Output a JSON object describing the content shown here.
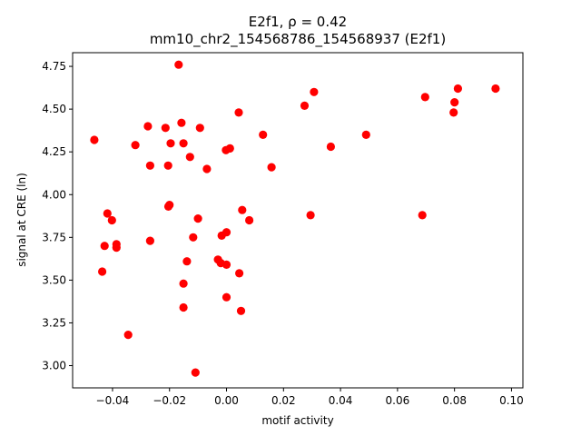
{
  "chart_data": {
    "type": "scatter",
    "title_line1": "E2f1, ρ = 0.42",
    "title_line2": "mm10_chr2_154568786_154568937 (E2f1)",
    "xlabel": "motif activity",
    "ylabel": "signal at CRE (ln)",
    "xlim": [
      -0.054,
      0.104
    ],
    "ylim": [
      2.87,
      4.83
    ],
    "xticks": [
      -0.04,
      -0.02,
      0.0,
      0.02,
      0.04,
      0.06,
      0.08,
      0.1
    ],
    "xtick_labels": [
      "−0.04",
      "−0.02",
      "0.00",
      "0.02",
      "0.04",
      "0.06",
      "0.08",
      "0.10"
    ],
    "yticks": [
      3.0,
      3.25,
      3.5,
      3.75,
      4.0,
      4.25,
      4.5,
      4.75
    ],
    "ytick_labels": [
      "3.00",
      "3.25",
      "3.50",
      "3.75",
      "4.00",
      "4.25",
      "4.50",
      "4.75"
    ],
    "marker_color": "#ff0000",
    "grid": false,
    "points": [
      {
        "x": -0.0464,
        "y": 4.32
      },
      {
        "x": -0.0436,
        "y": 3.55
      },
      {
        "x": -0.0428,
        "y": 3.7
      },
      {
        "x": -0.0418,
        "y": 3.89
      },
      {
        "x": -0.0402,
        "y": 3.85
      },
      {
        "x": -0.0386,
        "y": 3.71
      },
      {
        "x": -0.0386,
        "y": 3.69
      },
      {
        "x": -0.0345,
        "y": 3.18
      },
      {
        "x": -0.032,
        "y": 4.29
      },
      {
        "x": -0.0276,
        "y": 4.4
      },
      {
        "x": -0.0268,
        "y": 4.17
      },
      {
        "x": -0.0268,
        "y": 3.73
      },
      {
        "x": -0.0214,
        "y": 4.39
      },
      {
        "x": -0.0205,
        "y": 4.17
      },
      {
        "x": -0.0204,
        "y": 3.93
      },
      {
        "x": -0.02,
        "y": 3.94
      },
      {
        "x": -0.0196,
        "y": 4.3
      },
      {
        "x": -0.0168,
        "y": 4.76
      },
      {
        "x": -0.0158,
        "y": 4.42
      },
      {
        "x": -0.0151,
        "y": 4.3
      },
      {
        "x": -0.0151,
        "y": 3.48
      },
      {
        "x": -0.0151,
        "y": 3.34
      },
      {
        "x": -0.0139,
        "y": 3.61
      },
      {
        "x": -0.0128,
        "y": 4.22
      },
      {
        "x": -0.0117,
        "y": 3.75
      },
      {
        "x": -0.0109,
        "y": 2.96
      },
      {
        "x": -0.01,
        "y": 3.86
      },
      {
        "x": -0.0093,
        "y": 4.39
      },
      {
        "x": -0.0069,
        "y": 4.15
      },
      {
        "x": -0.003,
        "y": 3.62
      },
      {
        "x": -0.002,
        "y": 3.6
      },
      {
        "x": -0.0017,
        "y": 3.76
      },
      {
        "x": -0.0002,
        "y": 4.26
      },
      {
        "x": 0.0,
        "y": 3.59
      },
      {
        "x": 0.0,
        "y": 3.78
      },
      {
        "x": 0.0,
        "y": 3.4
      },
      {
        "x": 0.0012,
        "y": 4.27
      },
      {
        "x": 0.0043,
        "y": 4.48
      },
      {
        "x": 0.0045,
        "y": 3.54
      },
      {
        "x": 0.0051,
        "y": 3.32
      },
      {
        "x": 0.0055,
        "y": 3.91
      },
      {
        "x": 0.008,
        "y": 3.85
      },
      {
        "x": 0.0128,
        "y": 4.35
      },
      {
        "x": 0.0158,
        "y": 4.16
      },
      {
        "x": 0.0274,
        "y": 4.52
      },
      {
        "x": 0.0295,
        "y": 3.88
      },
      {
        "x": 0.0307,
        "y": 4.6
      },
      {
        "x": 0.0366,
        "y": 4.28
      },
      {
        "x": 0.049,
        "y": 4.35
      },
      {
        "x": 0.0687,
        "y": 3.88
      },
      {
        "x": 0.0697,
        "y": 4.57
      },
      {
        "x": 0.0797,
        "y": 4.48
      },
      {
        "x": 0.08,
        "y": 4.54
      },
      {
        "x": 0.0812,
        "y": 4.62
      },
      {
        "x": 0.0944,
        "y": 4.62
      }
    ]
  }
}
